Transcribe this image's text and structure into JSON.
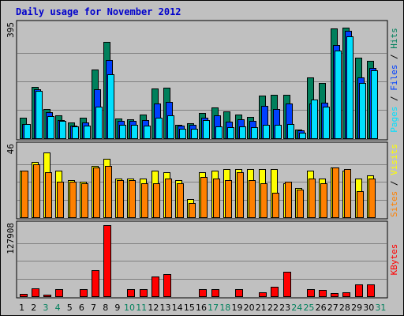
{
  "window_title": "Daily usage for November 2012",
  "colors": {
    "background": "#c0c0c0",
    "hits": "#00805c",
    "files": "#0040ff",
    "pages": "#00e0ff",
    "visits": "#ffff00",
    "sites": "#ff8000",
    "kbytes": "#ff0000",
    "weekday_label": "#000000",
    "weekend_label": "#00805c",
    "gridline": "#808080",
    "title": "#0000cc"
  },
  "chart_data": [
    {
      "type": "bar",
      "title": "Daily usage for November 2012",
      "panel": "hits-files-pages",
      "ylabel": "Pages / Files / Hits",
      "ylabel_parts": [
        {
          "text": "Pages",
          "color": "#00e0ff"
        },
        {
          "text": " / ",
          "color": "#000000"
        },
        {
          "text": "Files",
          "color": "#0040ff"
        },
        {
          "text": " / ",
          "color": "#000000"
        },
        {
          "text": "Hits",
          "color": "#00805c"
        }
      ],
      "ymax_label": "395",
      "ylim": [
        0,
        395
      ],
      "grid": true,
      "categories": [
        "1",
        "2",
        "3",
        "4",
        "5",
        "6",
        "7",
        "8",
        "9",
        "10",
        "11",
        "12",
        "13",
        "14",
        "15",
        "16",
        "17",
        "18",
        "19",
        "20",
        "21",
        "22",
        "23",
        "24",
        "25",
        "26",
        "27",
        "28",
        "29",
        "30",
        "31"
      ],
      "series": [
        {
          "name": "Hits",
          "color": "#00805c",
          "values": [
            70,
            178,
            102,
            80,
            55,
            70,
            238,
            335,
            68,
            67,
            82,
            173,
            175,
            47,
            52,
            87,
            108,
            92,
            83,
            74,
            148,
            152,
            150,
            30,
            210,
            192,
            380,
            385,
            280,
            270,
            0
          ]
        },
        {
          "name": "Files",
          "color": "#0040ff",
          "values": [
            50,
            170,
            90,
            64,
            45,
            55,
            170,
            272,
            60,
            60,
            62,
            122,
            125,
            44,
            48,
            70,
            80,
            58,
            65,
            60,
            112,
            102,
            120,
            28,
            120,
            124,
            325,
            372,
            210,
            243,
            0
          ]
        },
        {
          "name": "Pages",
          "color": "#00e0ff",
          "values": [
            50,
            165,
            78,
            60,
            40,
            45,
            110,
            222,
            48,
            48,
            45,
            70,
            80,
            32,
            32,
            62,
            40,
            38,
            40,
            38,
            48,
            48,
            50,
            20,
            135,
            110,
            305,
            355,
            192,
            235,
            0
          ]
        }
      ]
    },
    {
      "type": "bar",
      "panel": "visits-sites",
      "ylabel": "Sites / Visits",
      "ylabel_parts": [
        {
          "text": "Sites",
          "color": "#ff8000"
        },
        {
          "text": " / ",
          "color": "#000000"
        },
        {
          "text": "Visits",
          "color": "#ffff00"
        }
      ],
      "ymax_label": "46",
      "ylim": [
        0,
        46
      ],
      "grid": true,
      "categories": [
        "1",
        "2",
        "3",
        "4",
        "5",
        "6",
        "7",
        "8",
        "9",
        "10",
        "11",
        "12",
        "13",
        "14",
        "15",
        "16",
        "17",
        "18",
        "19",
        "20",
        "21",
        "22",
        "23",
        "24",
        "25",
        "26",
        "27",
        "28",
        "29",
        "30",
        "31"
      ],
      "series": [
        {
          "name": "Visits",
          "color": "#ffff00",
          "values": [
            30,
            36,
            42,
            30,
            24,
            23,
            33,
            38,
            25,
            25,
            25,
            30,
            29,
            24,
            12,
            29,
            30,
            31,
            31,
            31,
            31,
            31,
            22,
            19,
            30,
            25,
            32,
            30,
            25,
            27,
            0
          ]
        },
        {
          "name": "Sites",
          "color": "#ff8000",
          "values": [
            30,
            34,
            29,
            23,
            23,
            22,
            32,
            33,
            24,
            24,
            22,
            22,
            25,
            22,
            9,
            26,
            25,
            24,
            29,
            24,
            22,
            16,
            23,
            18,
            25,
            22,
            32,
            31,
            17,
            25,
            0
          ]
        }
      ]
    },
    {
      "type": "bar",
      "panel": "kbytes",
      "ylabel": "KBytes",
      "ylabel_parts": [
        {
          "text": "KBytes",
          "color": "#ff0000"
        }
      ],
      "ymax_label": "127908",
      "ylim": [
        0,
        127908
      ],
      "grid": true,
      "categories": [
        "1",
        "2",
        "3",
        "4",
        "5",
        "6",
        "7",
        "8",
        "9",
        "10",
        "11",
        "12",
        "13",
        "14",
        "15",
        "16",
        "17",
        "18",
        "19",
        "20",
        "21",
        "22",
        "23",
        "24",
        "25",
        "26",
        "27",
        "28",
        "29",
        "30",
        "31"
      ],
      "series": [
        {
          "name": "KBytes",
          "color": "#ff0000",
          "values": [
            4500,
            14000,
            3500,
            13000,
            0,
            12500,
            47000,
            127908,
            0,
            13000,
            13000,
            36000,
            40000,
            0,
            0,
            12500,
            12500,
            0,
            12500,
            0,
            7000,
            17000,
            44000,
            0,
            13000,
            11000,
            6000,
            6500,
            22000,
            22000,
            0
          ]
        }
      ]
    }
  ],
  "x_labels": [
    {
      "label": "1",
      "weekend": false
    },
    {
      "label": "2",
      "weekend": false
    },
    {
      "label": "3",
      "weekend": true
    },
    {
      "label": "4",
      "weekend": true
    },
    {
      "label": "5",
      "weekend": false
    },
    {
      "label": "6",
      "weekend": false
    },
    {
      "label": "7",
      "weekend": false
    },
    {
      "label": "8",
      "weekend": false
    },
    {
      "label": "9",
      "weekend": false
    },
    {
      "label": "10",
      "weekend": true
    },
    {
      "label": "11",
      "weekend": true
    },
    {
      "label": "12",
      "weekend": false
    },
    {
      "label": "13",
      "weekend": false
    },
    {
      "label": "14",
      "weekend": false
    },
    {
      "label": "15",
      "weekend": false
    },
    {
      "label": "16",
      "weekend": false
    },
    {
      "label": "17",
      "weekend": true
    },
    {
      "label": "18",
      "weekend": true
    },
    {
      "label": "19",
      "weekend": false
    },
    {
      "label": "20",
      "weekend": false
    },
    {
      "label": "21",
      "weekend": false
    },
    {
      "label": "22",
      "weekend": false
    },
    {
      "label": "23",
      "weekend": false
    },
    {
      "label": "24",
      "weekend": true
    },
    {
      "label": "25",
      "weekend": true
    },
    {
      "label": "26",
      "weekend": false
    },
    {
      "label": "27",
      "weekend": false
    },
    {
      "label": "28",
      "weekend": false
    },
    {
      "label": "29",
      "weekend": false
    },
    {
      "label": "30",
      "weekend": false
    },
    {
      "label": "31",
      "weekend": true
    }
  ]
}
